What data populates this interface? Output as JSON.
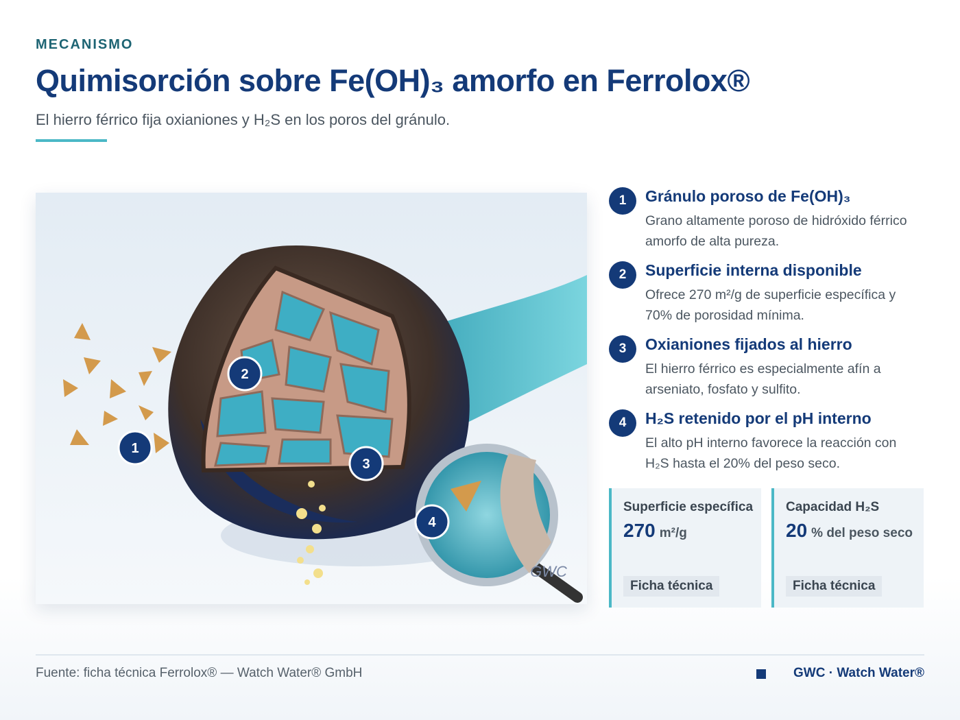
{
  "header": {
    "eyebrow": "MECANISMO",
    "title": "Quimisorción sobre Fe(OH)₃ amorfo en Ferrolox®",
    "subtitle": "El hierro férrico fija oxianiones y H₂S en los poros del gránulo."
  },
  "illustration": {
    "watermark": "GWC"
  },
  "steps": [
    {
      "number": "1",
      "title": "Gránulo poroso de Fe(OH)₃",
      "text": "Grano altamente poroso de hidróxido férrico amorfo de alta pureza."
    },
    {
      "number": "2",
      "title": "Superficie interna disponible",
      "text": "Ofrece 270 m²/g de superficie específica y 70% de porosidad mínima."
    },
    {
      "number": "3",
      "title": "Oxianiones fijados al hierro",
      "text": "El hierro férrico es especialmente afín a arseniato, fosfato y sulfito."
    },
    {
      "number": "4",
      "title": "H₂S retenido por el pH interno",
      "text": "El alto pH interno favorece la reacción con H₂S hasta el 20% del peso seco."
    }
  ],
  "stats": [
    {
      "label": "Superficie específica",
      "value": 270,
      "unit": "m²/g",
      "tag": "Ficha técnica"
    },
    {
      "label": "Capacidad H₂S",
      "value": 20,
      "unit": "% del peso seco",
      "tag": "Ficha técnica"
    }
  ],
  "footer": {
    "source": "Fuente: ficha técnica Ferrolox® — Watch Water® GmbH",
    "brand": "GWC · Watch Water®"
  }
}
